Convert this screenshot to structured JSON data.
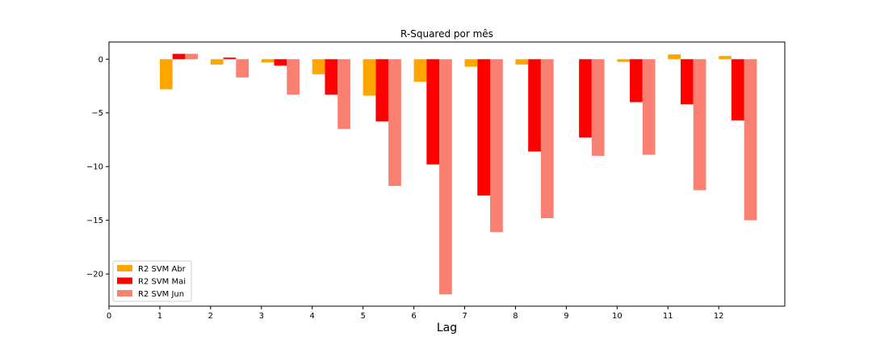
{
  "chart_data": {
    "type": "bar",
    "title": "R-Squared por mês",
    "xlabel": "Lag",
    "ylabel": "",
    "x_ticks": [
      0,
      1,
      2,
      3,
      4,
      5,
      6,
      7,
      8,
      9,
      10,
      11,
      12
    ],
    "y_ticks": [
      0,
      -5,
      -10,
      -15,
      -20
    ],
    "xlim": [
      0,
      13.3
    ],
    "ylim": [
      -23,
      1.6
    ],
    "grid": false,
    "legend_position": "lower-left",
    "categories": [
      1,
      2,
      3,
      4,
      5,
      6,
      7,
      8,
      9,
      10,
      11,
      12
    ],
    "series": [
      {
        "name": "R2 SVM Abr",
        "color": "#FFA500",
        "values": [
          -2.8,
          -0.5,
          -0.3,
          -1.4,
          -3.4,
          -2.1,
          -0.7,
          -0.5,
          0.0,
          -0.25,
          0.45,
          0.3
        ]
      },
      {
        "name": "R2 SVM Mai",
        "color": "#FF0000",
        "values": [
          0.5,
          0.15,
          -0.6,
          -3.3,
          -5.8,
          -9.8,
          -12.7,
          -8.6,
          -7.3,
          -4.0,
          -4.2,
          -5.7
        ]
      },
      {
        "name": "R2 SVM Jun",
        "color": "#FA8072",
        "values": [
          0.5,
          -1.7,
          -3.3,
          -6.5,
          -11.8,
          -21.9,
          -16.1,
          -14.8,
          -9.0,
          -8.9,
          -12.2,
          -15.0
        ]
      }
    ]
  }
}
